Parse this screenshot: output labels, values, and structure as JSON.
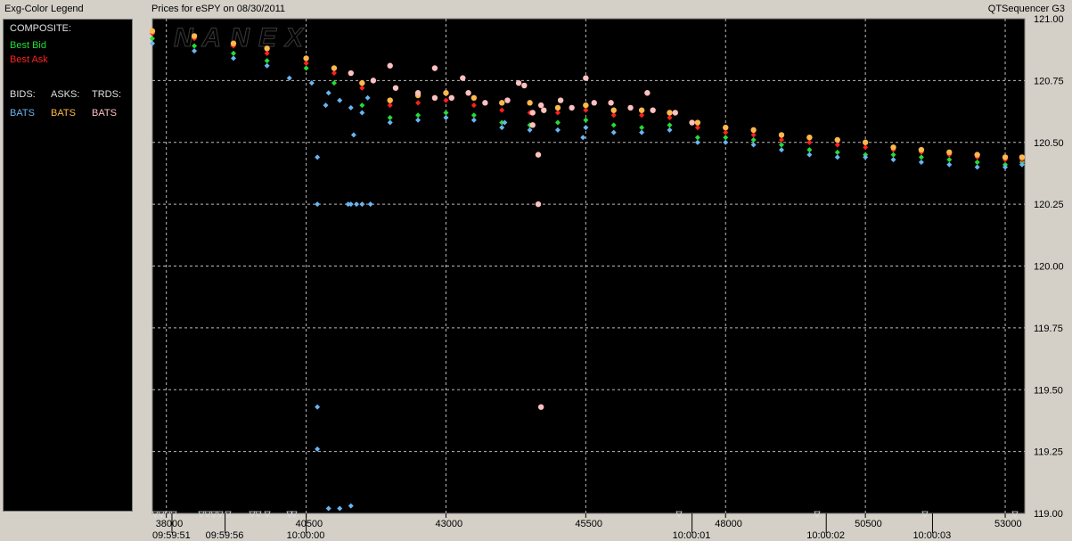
{
  "window": {
    "legend_title": "Exg-Color Legend",
    "chart_title": "Prices for  eSPY  on  08/30/2011",
    "app_name": "QTSequencer G3"
  },
  "legend": {
    "composite_label": "COMPOSITE:",
    "best_bid": "Best Bid",
    "best_ask": "Best Ask",
    "bids_header": "BIDS:",
    "asks_header": "ASKS:",
    "trds_header": "TRDS:",
    "bids_exchange": "BATS",
    "asks_exchange": "BATS",
    "trds_exchange": "BATS"
  },
  "colors": {
    "best_bid": "#22dd33",
    "best_ask": "#ff2020",
    "bats_bid": "#6ab4f0",
    "bats_ask": "#ffb84c",
    "bats_trade": "#ffc0c0",
    "composite_text": "#e0e0e0",
    "grid": "#bbbbbb",
    "plot_bg": "#000000"
  },
  "watermark": "NANEX",
  "chart_data": {
    "type": "scatter",
    "title": "Prices for  eSPY  on  08/30/2011",
    "xlim": [
      37750,
      53350
    ],
    "ylim": [
      119.0,
      121.0
    ],
    "x_ticks": [
      38000,
      40500,
      43000,
      45500,
      48000,
      50500,
      53000
    ],
    "y_ticks": [
      121.0,
      120.75,
      120.5,
      120.25,
      120.0,
      119.75,
      119.5,
      119.25,
      119.0
    ],
    "time_labels": [
      {
        "x": 38100,
        "label": "09:59:51"
      },
      {
        "x": 39050,
        "label": "09:59:56"
      },
      {
        "x": 40500,
        "label": "10:00:00"
      },
      {
        "x": 47400,
        "label": "10:00:01"
      },
      {
        "x": 49800,
        "label": "10:00:02"
      },
      {
        "x": 51700,
        "label": "10:00:03"
      }
    ],
    "grid": true,
    "series": [
      {
        "name": "Best Bid",
        "color": "#22dd33",
        "x": [
          37750,
          38500,
          39200,
          39800,
          40500,
          41000,
          41500,
          42000,
          42500,
          43000,
          43500,
          44000,
          44500,
          45000,
          45500,
          46000,
          46500,
          47000,
          47500,
          48000,
          48500,
          49000,
          49500,
          50000,
          50500,
          51000,
          51500,
          52000,
          52500,
          53000,
          53300
        ],
        "y": [
          120.92,
          120.89,
          120.86,
          120.83,
          120.8,
          120.74,
          120.65,
          120.6,
          120.61,
          120.62,
          120.61,
          120.58,
          120.57,
          120.58,
          120.59,
          120.57,
          120.56,
          120.57,
          120.52,
          120.52,
          120.51,
          120.49,
          120.47,
          120.46,
          120.45,
          120.45,
          120.44,
          120.43,
          120.42,
          120.41,
          120.42
        ]
      },
      {
        "name": "Best Ask",
        "color": "#ff2020",
        "x": [
          37750,
          38500,
          39200,
          39800,
          40500,
          41000,
          41500,
          42000,
          42500,
          43000,
          43500,
          44000,
          44500,
          45000,
          45500,
          46000,
          46500,
          47000,
          47500,
          48000,
          48500,
          49000,
          49500,
          50000,
          50500,
          51000,
          51500,
          52000,
          52500,
          53000,
          53300
        ],
        "y": [
          120.94,
          120.92,
          120.89,
          120.86,
          120.82,
          120.78,
          120.72,
          120.65,
          120.66,
          120.67,
          120.65,
          120.63,
          120.62,
          120.62,
          120.63,
          120.61,
          120.61,
          120.6,
          120.56,
          120.54,
          120.53,
          120.51,
          120.5,
          120.49,
          120.48,
          120.47,
          120.46,
          120.45,
          120.44,
          120.43,
          120.43
        ]
      },
      {
        "name": "BATS Bids",
        "color": "#6ab4f0",
        "x": [
          37750,
          38500,
          39200,
          39800,
          40200,
          40600,
          40900,
          41100,
          41300,
          41500,
          42000,
          42500,
          43000,
          43500,
          44000,
          44500,
          45000,
          45500,
          46000,
          46500,
          47000,
          47500,
          48000,
          48500,
          49000,
          49500,
          50000,
          50500,
          51000,
          51500,
          52000,
          52500,
          53000,
          53300,
          40850,
          41350,
          41600,
          40700,
          41250,
          41300,
          41400,
          41500,
          41650,
          40700,
          40700,
          40700,
          40900,
          41100,
          41300,
          44050,
          45450
        ],
        "y": [
          120.9,
          120.87,
          120.84,
          120.81,
          120.76,
          120.74,
          120.7,
          120.67,
          120.64,
          120.62,
          120.58,
          120.59,
          120.6,
          120.59,
          120.56,
          120.55,
          120.55,
          120.56,
          120.54,
          120.54,
          120.55,
          120.5,
          120.5,
          120.49,
          120.47,
          120.45,
          120.44,
          120.44,
          120.43,
          120.42,
          120.41,
          120.4,
          120.4,
          120.41,
          120.65,
          120.53,
          120.68,
          120.44,
          120.25,
          120.25,
          120.25,
          120.25,
          120.25,
          120.25,
          119.43,
          119.26,
          119.02,
          119.02,
          119.03,
          120.58,
          120.52
        ]
      },
      {
        "name": "BATS Asks",
        "color": "#ffb84c",
        "x": [
          37750,
          38500,
          39200,
          39800,
          40500,
          41000,
          41500,
          42000,
          42500,
          43000,
          43500,
          44000,
          44500,
          45000,
          45500,
          46000,
          46500,
          47000,
          47500,
          48000,
          48500,
          49000,
          49500,
          50000,
          50500,
          51000,
          51500,
          52000,
          52500,
          53000,
          53300
        ],
        "y": [
          120.95,
          120.93,
          120.9,
          120.88,
          120.84,
          120.8,
          120.74,
          120.67,
          120.69,
          120.7,
          120.68,
          120.66,
          120.66,
          120.64,
          120.65,
          120.63,
          120.63,
          120.62,
          120.58,
          120.56,
          120.55,
          120.53,
          120.52,
          120.51,
          120.5,
          120.48,
          120.47,
          120.46,
          120.45,
          120.44,
          120.44
        ]
      },
      {
        "name": "BATS Trades",
        "color": "#ffc0c0",
        "x": [
          41300,
          41700,
          42100,
          42500,
          42800,
          43100,
          43400,
          43700,
          44100,
          44550,
          44700,
          44750,
          45050,
          45250,
          45650,
          45950,
          46300,
          46700,
          47100,
          47400,
          42000,
          42800,
          43300,
          44300,
          45500,
          46600,
          44400,
          44550,
          44650,
          44650,
          44700
        ],
        "y": [
          120.78,
          120.75,
          120.72,
          120.7,
          120.68,
          120.68,
          120.7,
          120.66,
          120.67,
          120.62,
          120.65,
          120.63,
          120.67,
          120.64,
          120.66,
          120.66,
          120.64,
          120.63,
          120.62,
          120.58,
          120.81,
          120.8,
          120.76,
          120.74,
          120.76,
          120.7,
          120.73,
          120.57,
          120.45,
          120.25,
          119.43
        ]
      }
    ]
  }
}
